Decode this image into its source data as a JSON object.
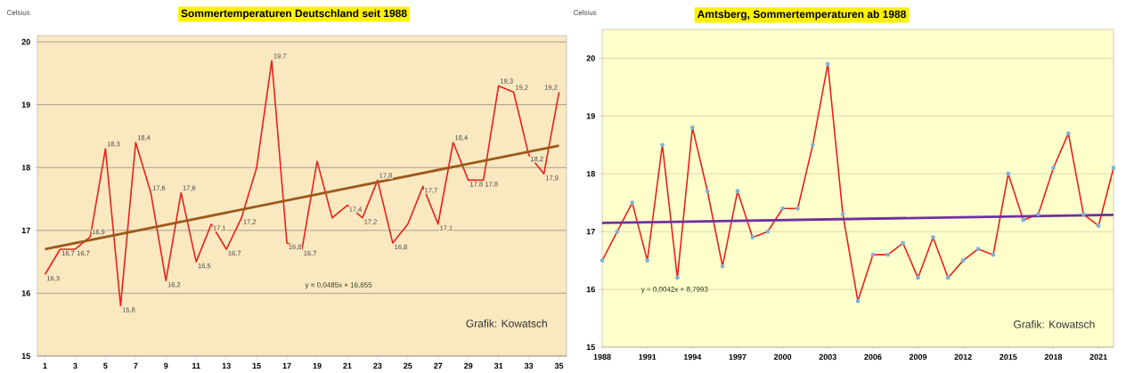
{
  "chart_data": [
    {
      "type": "line",
      "title": "Sommertemperaturen Deutschland seit 1988",
      "ylabel": "Celsius",
      "x": [
        1,
        2,
        3,
        4,
        5,
        6,
        7,
        8,
        9,
        10,
        11,
        12,
        13,
        14,
        15,
        16,
        17,
        18,
        19,
        20,
        21,
        22,
        23,
        24,
        25,
        26,
        27,
        28,
        29,
        30,
        31,
        32,
        33,
        34,
        35
      ],
      "series": [
        {
          "color": "#e8211c",
          "values": [
            16.3,
            16.7,
            16.7,
            16.9,
            18.3,
            15.8,
            18.4,
            17.6,
            16.2,
            17.6,
            16.5,
            17.1,
            16.7,
            17.2,
            18.0,
            19.7,
            16.8,
            16.7,
            18.1,
            17.2,
            17.4,
            17.2,
            17.8,
            16.8,
            17.1,
            17.7,
            17.1,
            18.4,
            17.8,
            17.8,
            19.3,
            19.2,
            18.2,
            17.9,
            19.2
          ],
          "value_labels": [
            "16,3",
            "16,7",
            "16,7",
            "16,9",
            "18,3",
            "15,8",
            "18,4",
            "17,6",
            "16,2",
            "17,6",
            "16,5",
            "17,1",
            "16,7",
            "17,2",
            null,
            "19,7",
            "16,8",
            "16,7",
            null,
            null,
            "17,4",
            "17,2",
            "17,8",
            "16,8",
            null,
            "17,7",
            "17,1",
            "18,4",
            "17,8",
            "17,8",
            "19,3",
            "19,2",
            "18,2",
            "17,9",
            "19,2"
          ]
        },
        {
          "type": "line",
          "color": "#9b5a1a",
          "x": [
            1,
            35
          ],
          "values": [
            16.7,
            18.35
          ]
        }
      ],
      "xlim": [
        0.5,
        35.5
      ],
      "ylim": [
        15,
        20.1
      ],
      "xticks": [
        1,
        3,
        5,
        7,
        9,
        11,
        13,
        15,
        17,
        19,
        21,
        23,
        25,
        27,
        29,
        31,
        33,
        35
      ],
      "yticks": [
        15,
        16,
        17,
        18,
        19,
        20
      ],
      "grid": "y",
      "annotations": [
        "y = 0,0485x + 16,655",
        "Grafik: Kowatsch"
      ]
    },
    {
      "type": "line",
      "title": "Amtsberg, Sommertemperaturen ab 1988",
      "ylabel": "Celsius",
      "x": [
        1988,
        1989,
        1990,
        1991,
        1992,
        1993,
        1994,
        1995,
        1996,
        1997,
        1998,
        1999,
        2000,
        2001,
        2002,
        2003,
        2004,
        2005,
        2006,
        2007,
        2008,
        2009,
        2010,
        2011,
        2012,
        2013,
        2014,
        2015,
        2016,
        2017,
        2018,
        2019,
        2020,
        2021,
        2022
      ],
      "series": [
        {
          "color": "#e8211c",
          "marker": "circle",
          "values": [
            16.5,
            17.0,
            17.5,
            16.5,
            18.5,
            16.2,
            18.8,
            17.7,
            16.4,
            17.7,
            16.9,
            17.0,
            17.4,
            17.4,
            18.5,
            19.9,
            17.3,
            15.8,
            16.6,
            16.6,
            16.8,
            16.2,
            16.9,
            16.2,
            16.5,
            16.7,
            16.6,
            18.0,
            17.2,
            17.3,
            18.1,
            18.7,
            17.3,
            17.1,
            18.1
          ]
        },
        {
          "type": "line",
          "color": "#7030a0",
          "x": [
            1988,
            2022
          ],
          "values": [
            17.15,
            17.29
          ]
        }
      ],
      "xlim": [
        1988,
        2022
      ],
      "ylim": [
        15,
        20.5
      ],
      "xticks": [
        1988,
        1991,
        1994,
        1997,
        2000,
        2003,
        2006,
        2009,
        2012,
        2015,
        2018,
        2021
      ],
      "yticks": [
        15,
        16,
        17,
        18,
        19,
        20
      ],
      "grid": "y",
      "annotations": [
        "y = 0,0042x + 8,7993",
        "Grafik: Kowatsch"
      ]
    }
  ]
}
